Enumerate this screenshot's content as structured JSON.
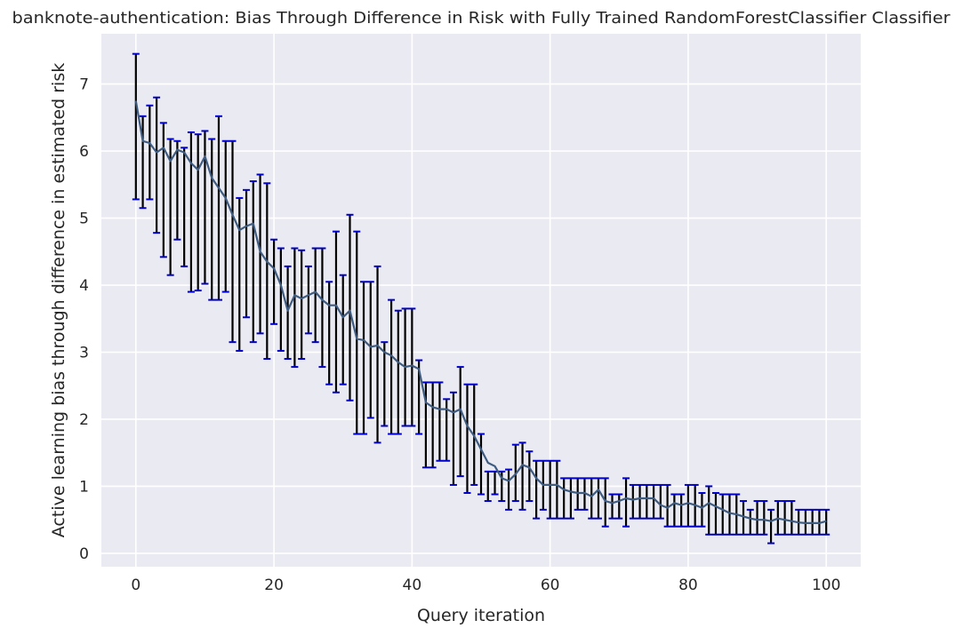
{
  "chart_data": {
    "type": "line",
    "title": "banknote-authentication: Bias Through Difference in Risk with Fully Trained RandomForestClassifier Classifier",
    "xlabel": "Query iteration",
    "ylabel": "Active learning bias through difference in estimated risk",
    "xlim": [
      -5,
      105
    ],
    "ylim": [
      -0.2,
      7.75
    ],
    "xticks": [
      0,
      20,
      40,
      60,
      80,
      100
    ],
    "yticks": [
      0,
      1,
      2,
      3,
      4,
      5,
      6,
      7
    ],
    "grid": true,
    "legend": "none",
    "colors": {
      "background": "#eaeaf2",
      "grid": "#ffffff",
      "line": "#3e5b80",
      "errorbar": "#000000",
      "cap": "#0000cd"
    },
    "x": [
      0,
      1,
      2,
      3,
      4,
      5,
      6,
      7,
      8,
      9,
      10,
      11,
      12,
      13,
      14,
      15,
      16,
      17,
      18,
      19,
      20,
      21,
      22,
      23,
      24,
      25,
      26,
      27,
      28,
      29,
      30,
      31,
      32,
      33,
      34,
      35,
      36,
      37,
      38,
      39,
      40,
      41,
      42,
      43,
      44,
      45,
      46,
      47,
      48,
      49,
      50,
      51,
      52,
      53,
      54,
      55,
      56,
      57,
      58,
      59,
      60,
      61,
      62,
      63,
      64,
      65,
      66,
      67,
      68,
      69,
      70,
      71,
      72,
      73,
      74,
      75,
      76,
      77,
      78,
      79,
      80,
      81,
      82,
      83,
      84,
      85,
      86,
      87,
      88,
      89,
      90,
      91,
      92,
      93,
      94,
      95,
      96,
      97,
      98,
      99,
      100
    ],
    "series": [
      {
        "values": [
          6.75,
          6.15,
          6.12,
          5.98,
          6.05,
          5.85,
          6.02,
          5.98,
          5.82,
          5.72,
          5.92,
          5.6,
          5.45,
          5.3,
          5.05,
          4.82,
          4.88,
          4.92,
          4.5,
          4.35,
          4.25,
          4.0,
          3.62,
          3.85,
          3.8,
          3.85,
          3.9,
          3.78,
          3.7,
          3.7,
          3.52,
          3.62,
          3.2,
          3.18,
          3.08,
          3.1,
          3.0,
          2.95,
          2.85,
          2.78,
          2.8,
          2.75,
          2.25,
          2.18,
          2.15,
          2.15,
          2.1,
          2.15,
          1.9,
          1.75,
          1.55,
          1.35,
          1.3,
          1.12,
          1.08,
          1.18,
          1.32,
          1.28,
          1.12,
          1.02,
          1.02,
          1.02,
          0.95,
          0.92,
          0.9,
          0.9,
          0.85,
          0.95,
          0.78,
          0.75,
          0.78,
          0.82,
          0.8,
          0.82,
          0.82,
          0.82,
          0.72,
          0.68,
          0.75,
          0.72,
          0.75,
          0.72,
          0.68,
          0.75,
          0.7,
          0.65,
          0.6,
          0.58,
          0.55,
          0.52,
          0.5,
          0.5,
          0.48,
          0.52,
          0.5,
          0.48,
          0.46,
          0.45,
          0.45,
          0.45,
          0.48
        ],
        "upper": [
          7.45,
          6.52,
          6.68,
          6.8,
          6.42,
          6.18,
          6.15,
          6.05,
          6.28,
          6.25,
          6.3,
          6.18,
          6.52,
          6.15,
          6.15,
          5.3,
          5.42,
          5.55,
          5.65,
          5.52,
          4.68,
          4.55,
          4.28,
          4.55,
          4.52,
          4.28,
          4.55,
          4.55,
          4.05,
          4.8,
          4.15,
          5.05,
          4.8,
          4.05,
          4.05,
          4.28,
          3.15,
          3.78,
          3.62,
          3.65,
          3.65,
          2.88,
          2.55,
          2.55,
          2.55,
          2.3,
          2.4,
          2.78,
          2.52,
          2.52,
          1.78,
          1.22,
          1.22,
          1.22,
          1.25,
          1.62,
          1.65,
          1.52,
          1.38,
          1.38,
          1.38,
          1.38,
          1.12,
          1.12,
          1.12,
          1.12,
          1.12,
          1.12,
          1.12,
          0.88,
          0.88,
          1.12,
          1.02,
          1.02,
          1.02,
          1.02,
          1.02,
          1.02,
          0.88,
          0.88,
          1.02,
          1.02,
          0.9,
          1.0,
          0.9,
          0.88,
          0.88,
          0.88,
          0.78,
          0.65,
          0.78,
          0.78,
          0.65,
          0.78,
          0.78,
          0.78,
          0.65,
          0.65,
          0.65,
          0.65,
          0.65
        ],
        "lower": [
          5.28,
          5.15,
          5.28,
          4.78,
          4.42,
          4.15,
          4.68,
          4.28,
          3.9,
          3.92,
          4.02,
          3.78,
          3.78,
          3.9,
          3.15,
          3.02,
          3.52,
          3.15,
          3.28,
          2.9,
          3.42,
          3.02,
          2.9,
          2.78,
          2.9,
          3.28,
          3.15,
          2.78,
          2.52,
          2.4,
          2.52,
          2.28,
          1.78,
          1.78,
          2.02,
          1.65,
          1.9,
          1.78,
          1.78,
          1.9,
          1.9,
          1.78,
          1.28,
          1.28,
          1.38,
          1.38,
          1.02,
          1.15,
          0.9,
          1.02,
          0.88,
          0.78,
          0.88,
          0.78,
          0.65,
          0.78,
          0.65,
          0.78,
          0.52,
          0.65,
          0.52,
          0.52,
          0.52,
          0.52,
          0.65,
          0.65,
          0.52,
          0.52,
          0.4,
          0.52,
          0.52,
          0.4,
          0.52,
          0.52,
          0.52,
          0.52,
          0.52,
          0.4,
          0.4,
          0.4,
          0.4,
          0.4,
          0.4,
          0.28,
          0.28,
          0.28,
          0.28,
          0.28,
          0.28,
          0.28,
          0.28,
          0.28,
          0.15,
          0.28,
          0.28,
          0.28,
          0.28,
          0.28,
          0.28,
          0.28,
          0.28
        ]
      }
    ]
  }
}
